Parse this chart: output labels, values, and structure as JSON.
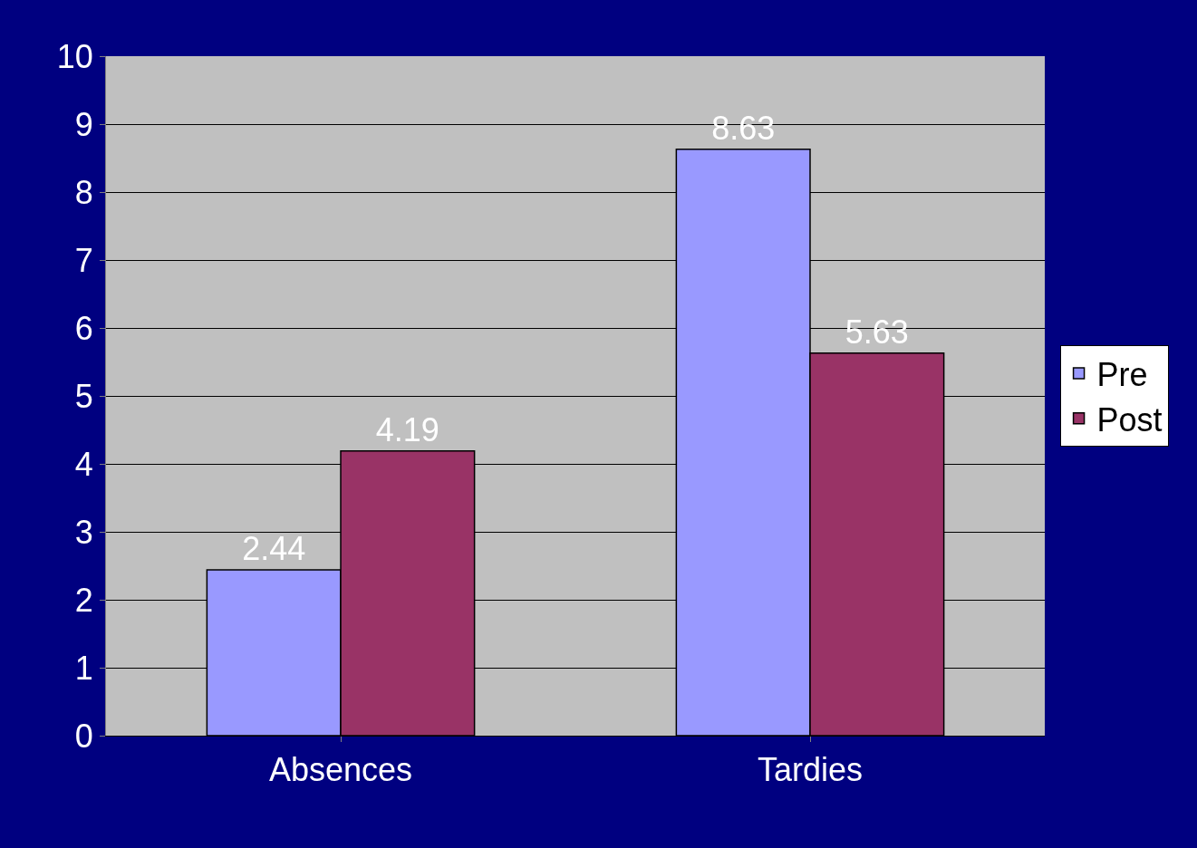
{
  "chart_data": {
    "type": "bar",
    "categories": [
      "Absences",
      "Tardies"
    ],
    "series": [
      {
        "name": "Pre",
        "color": "#9999ff",
        "values": [
          2.44,
          8.63
        ]
      },
      {
        "name": "Post",
        "color": "#993366",
        "values": [
          4.19,
          5.63
        ]
      }
    ],
    "ylim": [
      0,
      10
    ],
    "yticks": [
      0,
      1,
      2,
      3,
      4,
      5,
      6,
      7,
      8,
      9,
      10
    ],
    "grid": "y",
    "legend": "right",
    "data_labels": true
  }
}
